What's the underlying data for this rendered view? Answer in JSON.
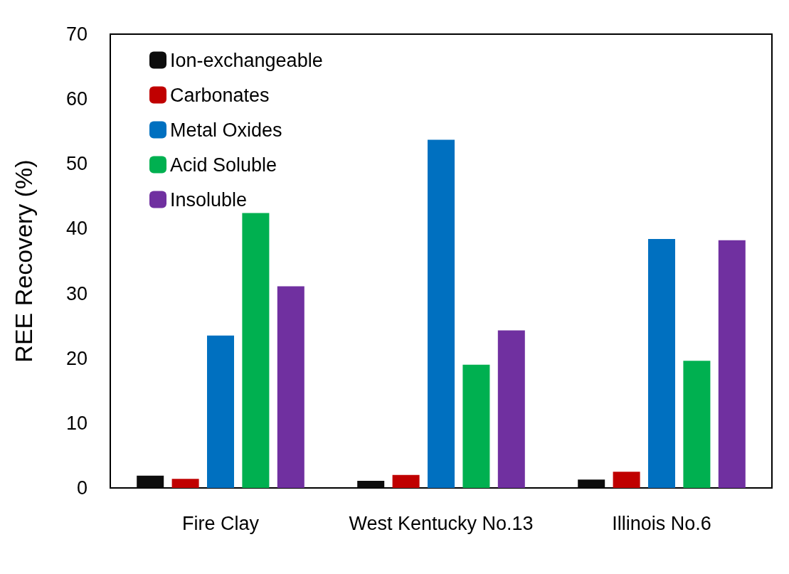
{
  "chart_data": {
    "type": "bar",
    "ylabel": "REE Recovery (%)",
    "categories": [
      "Fire Clay",
      "West Kentucky No.13",
      "Illinois No.6"
    ],
    "series": [
      {
        "name": "Ion-exchangeable",
        "color": "#0d0d0d",
        "values": [
          1.9,
          1.1,
          1.3
        ]
      },
      {
        "name": "Carbonates",
        "color": "#c00000",
        "values": [
          1.4,
          2.0,
          2.5
        ]
      },
      {
        "name": "Metal Oxides",
        "color": "#0070c0",
        "values": [
          23.5,
          53.7,
          38.4
        ]
      },
      {
        "name": "Acid Soluble",
        "color": "#00b050",
        "values": [
          42.4,
          19.0,
          19.6
        ]
      },
      {
        "name": "Insoluble",
        "color": "#7030a0",
        "values": [
          31.1,
          24.3,
          38.2
        ]
      }
    ],
    "ylim": [
      0,
      70
    ],
    "yticks": [
      0,
      10,
      20,
      30,
      40,
      50,
      60,
      70
    ],
    "grid": false,
    "legend": "top left"
  }
}
